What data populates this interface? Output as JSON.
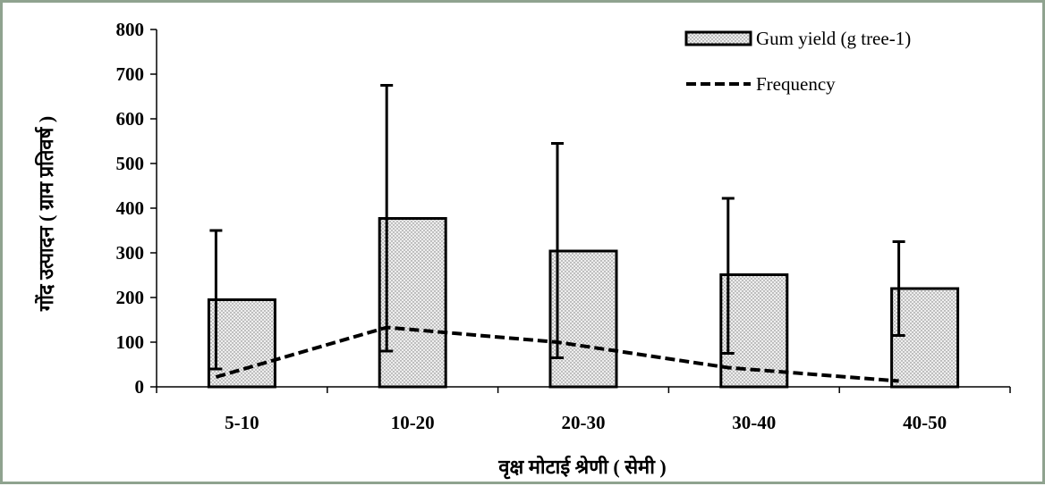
{
  "chart_data": {
    "type": "bar",
    "xlabel": "वृक्ष मोटाई श्रेणी ( सेमी )",
    "ylabel": "गोंद उत्पादन ( ग्राम प्रतिवर्ष )",
    "ylim": [
      0,
      800
    ],
    "yticks": [
      0,
      100,
      200,
      300,
      400,
      500,
      600,
      700,
      800
    ],
    "grid": false,
    "legend_position": "top-right",
    "categories": [
      "5-10",
      "10-20",
      "20-30",
      "30-40",
      "40-50"
    ],
    "series": [
      {
        "name": "Gum yield (g tree-1)",
        "kind": "bar",
        "values": [
          195,
          377,
          304,
          251,
          220
        ],
        "error_low": [
          40,
          80,
          65,
          75,
          115
        ],
        "error_high": [
          350,
          675,
          545,
          422,
          325
        ]
      },
      {
        "name": "Frequency",
        "kind": "line",
        "style": "dashed",
        "values": [
          22,
          133,
          100,
          43,
          13
        ]
      }
    ],
    "colors": {
      "bar_fill": "#e6e6e6",
      "bar_stroke": "#000000",
      "line": "#000000",
      "frame": "#8fa38f"
    }
  }
}
